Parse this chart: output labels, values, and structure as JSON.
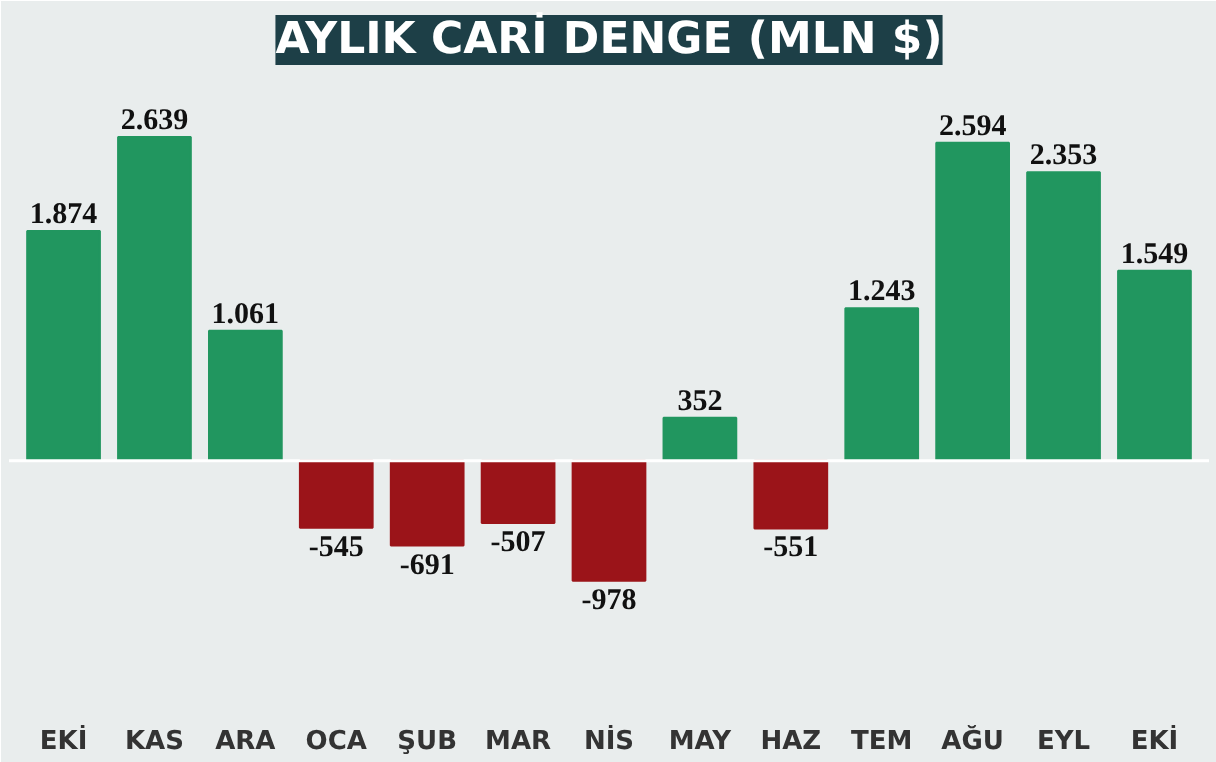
{
  "chart_data": {
    "type": "bar",
    "title": "AYLIK CARİ DENGE (MLN $)",
    "categories": [
      "EKİ",
      "KAS",
      "ARA",
      "OCA",
      "ŞUB",
      "MAR",
      "NİS",
      "MAY",
      "HAZ",
      "TEM",
      "AĞU",
      "EYL",
      "EKİ"
    ],
    "values": [
      1874,
      2639,
      1061,
      -545,
      -691,
      -507,
      -978,
      352,
      -551,
      1243,
      2594,
      2353,
      1549
    ],
    "colors": [
      "#21965f",
      "#21965f",
      "#21965f",
      "#9b1419",
      "#9b1419",
      "#9b1419",
      "#9b1419",
      "#21965f",
      "#9b1419",
      "#21965f",
      "#21965f",
      "#21965f",
      "#21965f"
    ],
    "value_labels": [
      "1.874",
      "2.639",
      "1.061",
      "-545",
      "-691",
      "-507",
      "-978",
      "352",
      "-551",
      "1.243",
      "2.594",
      "2.353",
      "1.549"
    ]
  }
}
